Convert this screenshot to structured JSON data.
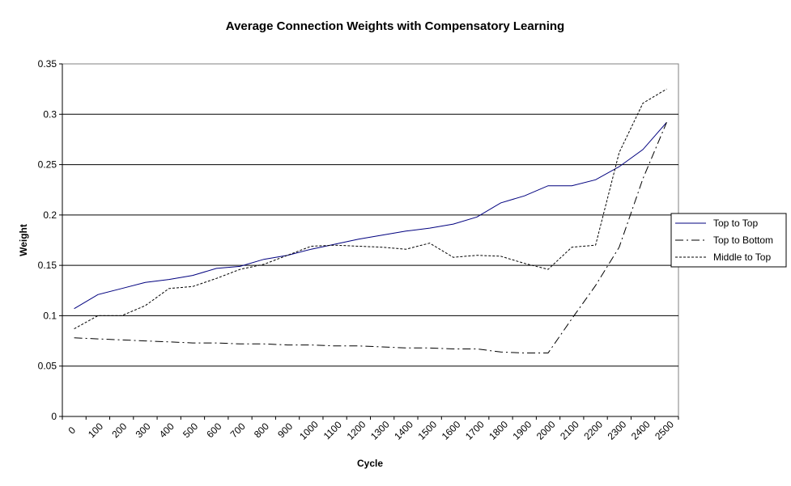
{
  "chart_data": {
    "type": "line",
    "title": "Average Connection Weights with Compensatory Learning",
    "xlabel": "Cycle",
    "ylabel": "Weight",
    "ylim": [
      0,
      0.35
    ],
    "y_ticks": [
      "0",
      "0.05",
      "0.1",
      "0.15",
      "0.2",
      "0.25",
      "0.3",
      "0.35"
    ],
    "y_tick_values": [
      0,
      0.05,
      0.1,
      0.15,
      0.2,
      0.25,
      0.3,
      0.35
    ],
    "categories": [
      "0",
      "100",
      "200",
      "300",
      "400",
      "500",
      "600",
      "700",
      "800",
      "900",
      "1000",
      "1100",
      "1200",
      "1300",
      "1400",
      "1500",
      "1600",
      "1700",
      "1800",
      "1900",
      "2000",
      "2100",
      "2200",
      "2300",
      "2400",
      "2500"
    ],
    "grid": "horizontal major gridlines",
    "legend_position": "right",
    "series": [
      {
        "name": "Top to Top",
        "color": "#00007f",
        "dash": "solid",
        "values": [
          0.107,
          0.121,
          0.127,
          0.133,
          0.136,
          0.14,
          0.147,
          0.149,
          0.156,
          0.16,
          0.166,
          0.171,
          0.176,
          0.18,
          0.184,
          0.187,
          0.191,
          0.198,
          0.212,
          0.219,
          0.229,
          0.229,
          0.235,
          0.248,
          0.265,
          0.292
        ]
      },
      {
        "name": "Top to Bottom",
        "color": "#000000",
        "dash": "dashdot",
        "values": [
          0.078,
          0.077,
          0.076,
          0.075,
          0.074,
          0.073,
          0.073,
          0.072,
          0.072,
          0.071,
          0.071,
          0.07,
          0.07,
          0.069,
          0.068,
          0.068,
          0.067,
          0.067,
          0.064,
          0.063,
          0.063,
          0.097,
          0.13,
          0.168,
          0.236,
          0.292
        ]
      },
      {
        "name": "Middle to Top",
        "color": "#000000",
        "dash": "dotted",
        "values": [
          0.087,
          0.1,
          0.1,
          0.11,
          0.127,
          0.129,
          0.137,
          0.146,
          0.151,
          0.16,
          0.169,
          0.17,
          0.169,
          0.168,
          0.166,
          0.172,
          0.158,
          0.16,
          0.159,
          0.152,
          0.146,
          0.168,
          0.17,
          0.262,
          0.311,
          0.325
        ]
      }
    ]
  }
}
